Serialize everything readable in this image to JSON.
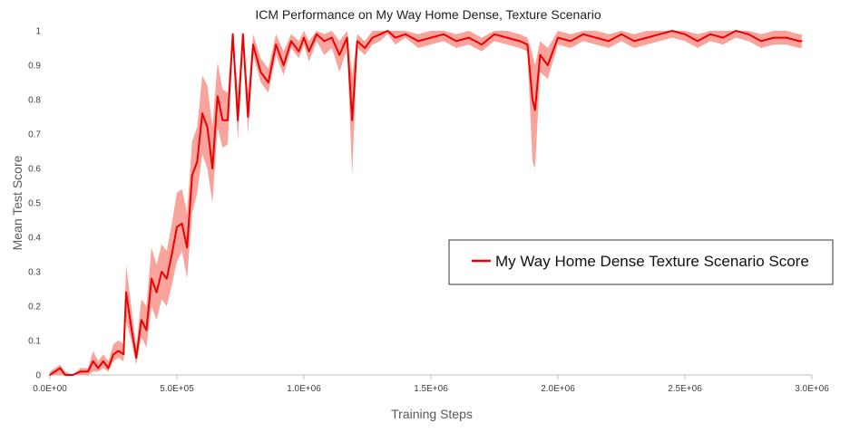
{
  "chart_data": {
    "type": "line",
    "title": "ICM Performance on My Way Home Dense, Texture Scenario",
    "xlabel": "Training Steps",
    "ylabel": "Mean Test Score",
    "xlim": [
      0,
      3000000
    ],
    "ylim": [
      0,
      1
    ],
    "x_ticks": [
      0,
      500000,
      1000000,
      1500000,
      2000000,
      2500000,
      3000000
    ],
    "x_tick_labels": [
      "0.0E+00",
      "5.0E+05",
      "1.0E+06",
      "1.5E+06",
      "2.0E+06",
      "2.5E+06",
      "3.0E+06"
    ],
    "y_ticks": [
      0,
      0.1,
      0.2,
      0.3,
      0.4,
      0.5,
      0.6,
      0.7,
      0.8,
      0.9,
      1
    ],
    "y_tick_labels": [
      "0",
      "0.1",
      "0.2",
      "0.3",
      "0.4",
      "0.5",
      "0.6",
      "0.7",
      "0.8",
      "0.9",
      "1"
    ],
    "grid": false,
    "legend_position": "right",
    "colors": {
      "line": "#ee0000",
      "band": "#f8a39c"
    },
    "series": [
      {
        "name": "My Way Home Dense Texture Scenario Score",
        "x": [
          0,
          20000,
          40000,
          60000,
          90000,
          120000,
          150000,
          170000,
          190000,
          210000,
          230000,
          250000,
          270000,
          290000,
          300000,
          320000,
          340000,
          360000,
          380000,
          400000,
          420000,
          440000,
          460000,
          480000,
          500000,
          520000,
          540000,
          560000,
          580000,
          600000,
          620000,
          640000,
          660000,
          680000,
          700000,
          720000,
          740000,
          760000,
          780000,
          800000,
          830000,
          860000,
          890000,
          920000,
          950000,
          980000,
          1000000,
          1020000,
          1050000,
          1080000,
          1110000,
          1140000,
          1170000,
          1190000,
          1210000,
          1240000,
          1270000,
          1300000,
          1330000,
          1360000,
          1400000,
          1450000,
          1500000,
          1550000,
          1600000,
          1650000,
          1700000,
          1750000,
          1800000,
          1850000,
          1880000,
          1900000,
          1910000,
          1930000,
          1960000,
          2000000,
          2050000,
          2100000,
          2150000,
          2200000,
          2250000,
          2300000,
          2350000,
          2400000,
          2450000,
          2500000,
          2550000,
          2600000,
          2650000,
          2700000,
          2750000,
          2800000,
          2850000,
          2900000,
          2950000,
          2960000
        ],
        "values": [
          0,
          0.01,
          0.02,
          0,
          0,
          0.01,
          0.01,
          0.04,
          0.02,
          0.04,
          0.02,
          0.06,
          0.07,
          0.06,
          0.24,
          0.14,
          0.05,
          0.16,
          0.13,
          0.28,
          0.24,
          0.3,
          0.28,
          0.35,
          0.43,
          0.44,
          0.37,
          0.58,
          0.62,
          0.76,
          0.72,
          0.6,
          0.81,
          0.74,
          0.74,
          0.99,
          0.74,
          0.99,
          0.75,
          0.96,
          0.88,
          0.85,
          0.96,
          0.9,
          0.97,
          0.94,
          0.98,
          0.94,
          0.99,
          0.97,
          0.98,
          0.93,
          0.98,
          0.74,
          0.97,
          0.95,
          0.98,
          0.99,
          1,
          0.98,
          0.99,
          0.97,
          0.98,
          0.99,
          0.97,
          0.98,
          0.96,
          0.99,
          0.98,
          0.97,
          0.96,
          0.8,
          0.77,
          0.93,
          0.9,
          0.98,
          0.97,
          0.99,
          0.98,
          0.97,
          0.99,
          0.97,
          0.98,
          0.99,
          1,
          0.99,
          0.97,
          0.99,
          0.98,
          1,
          0.99,
          0.97,
          0.98,
          0.98,
          0.97,
          0.97
        ],
        "lower": [
          0,
          0,
          0,
          0,
          0,
          0,
          0,
          0.01,
          0.01,
          0.02,
          0.01,
          0.04,
          0.05,
          0.04,
          0.16,
          0.1,
          0.03,
          0.11,
          0.08,
          0.2,
          0.16,
          0.22,
          0.2,
          0.26,
          0.33,
          0.36,
          0.28,
          0.47,
          0.53,
          0.64,
          0.6,
          0.5,
          0.72,
          0.66,
          0.67,
          0.96,
          0.68,
          0.95,
          0.7,
          0.93,
          0.85,
          0.82,
          0.93,
          0.87,
          0.95,
          0.92,
          0.96,
          0.91,
          0.97,
          0.93,
          0.95,
          0.88,
          0.95,
          0.58,
          0.95,
          0.93,
          0.96,
          0.97,
          0.99,
          0.96,
          0.98,
          0.95,
          0.96,
          0.97,
          0.95,
          0.96,
          0.94,
          0.97,
          0.96,
          0.95,
          0.94,
          0.62,
          0.6,
          0.88,
          0.86,
          0.96,
          0.95,
          0.97,
          0.96,
          0.95,
          0.97,
          0.95,
          0.96,
          0.97,
          0.98,
          0.97,
          0.95,
          0.97,
          0.96,
          0.98,
          0.97,
          0.95,
          0.96,
          0.96,
          0.95,
          0.95
        ],
        "upper": [
          0.01,
          0.02,
          0.03,
          0.01,
          0,
          0.02,
          0.02,
          0.07,
          0.04,
          0.06,
          0.04,
          0.09,
          0.1,
          0.09,
          0.32,
          0.2,
          0.08,
          0.22,
          0.2,
          0.37,
          0.32,
          0.38,
          0.36,
          0.44,
          0.53,
          0.54,
          0.47,
          0.68,
          0.72,
          0.87,
          0.84,
          0.72,
          0.91,
          0.83,
          0.82,
          1,
          0.82,
          1,
          0.82,
          0.99,
          0.92,
          0.89,
          0.99,
          0.94,
          0.99,
          0.97,
          1,
          0.97,
          1,
          0.99,
          1,
          0.97,
          1,
          0.87,
          0.99,
          0.97,
          1,
          1,
          1,
          1,
          1,
          0.99,
          1,
          1,
          0.99,
          1,
          0.98,
          1,
          1,
          0.99,
          0.98,
          0.93,
          0.9,
          0.97,
          0.95,
          1,
          0.99,
          1,
          1,
          0.99,
          1,
          0.99,
          1,
          1,
          1,
          1,
          0.99,
          1,
          1,
          1,
          1,
          0.99,
          1,
          1,
          0.99,
          0.99
        ]
      }
    ]
  }
}
